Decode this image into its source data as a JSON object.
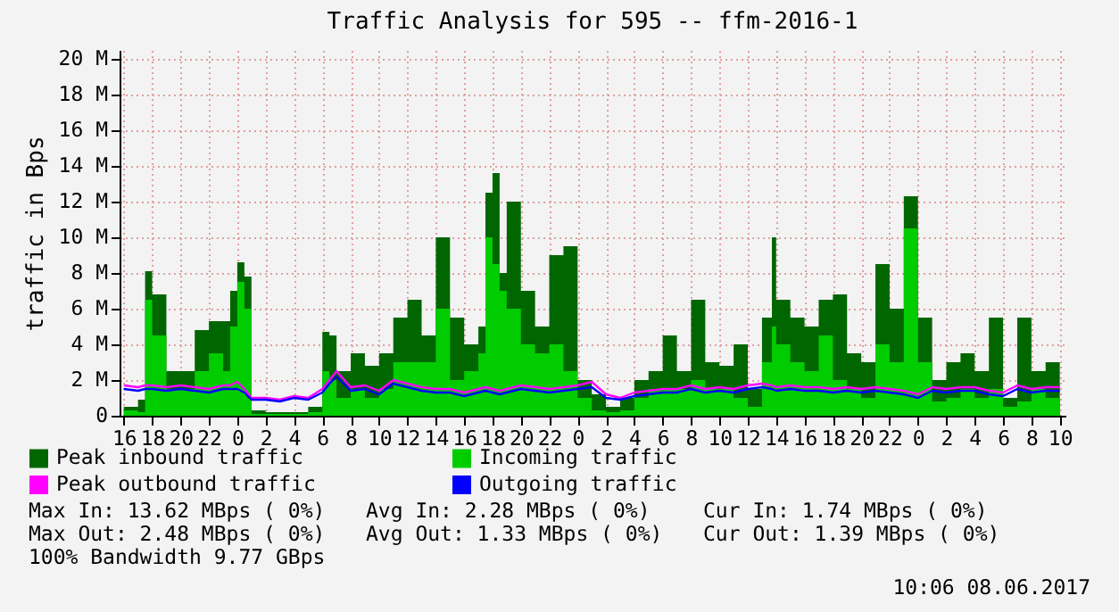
{
  "chart_data": {
    "type": "area",
    "title": "Traffic Analysis for 595 -- ffm-2016-1",
    "ylabel": "traffic in Bps",
    "x": [
      "2017-06-05T16:00",
      "2017-06-05T17:00",
      "2017-06-05T17:30",
      "2017-06-05T18:00",
      "2017-06-05T19:00",
      "2017-06-05T20:00",
      "2017-06-05T21:00",
      "2017-06-05T22:00",
      "2017-06-05T23:00",
      "2017-06-05T23:30",
      "2017-06-06T00:00",
      "2017-06-06T00:30",
      "2017-06-06T01:00",
      "2017-06-06T02:00",
      "2017-06-06T03:00",
      "2017-06-06T04:00",
      "2017-06-06T05:00",
      "2017-06-06T06:00",
      "2017-06-06T06:30",
      "2017-06-06T07:00",
      "2017-06-06T08:00",
      "2017-06-06T09:00",
      "2017-06-06T10:00",
      "2017-06-06T11:00",
      "2017-06-06T12:00",
      "2017-06-06T13:00",
      "2017-06-06T14:00",
      "2017-06-06T15:00",
      "2017-06-06T16:00",
      "2017-06-06T17:00",
      "2017-06-06T17:30",
      "2017-06-06T18:00",
      "2017-06-06T18:30",
      "2017-06-06T19:00",
      "2017-06-06T20:00",
      "2017-06-06T21:00",
      "2017-06-06T22:00",
      "2017-06-06T23:00",
      "2017-06-07T00:00",
      "2017-06-07T01:00",
      "2017-06-07T02:00",
      "2017-06-07T03:00",
      "2017-06-07T04:00",
      "2017-06-07T05:00",
      "2017-06-07T06:00",
      "2017-06-07T07:00",
      "2017-06-07T08:00",
      "2017-06-07T09:00",
      "2017-06-07T10:00",
      "2017-06-07T11:00",
      "2017-06-07T12:00",
      "2017-06-07T13:00",
      "2017-06-07T13:42",
      "2017-06-07T14:00",
      "2017-06-07T15:00",
      "2017-06-07T16:00",
      "2017-06-07T17:00",
      "2017-06-07T18:00",
      "2017-06-07T19:00",
      "2017-06-07T20:00",
      "2017-06-07T21:00",
      "2017-06-07T22:00",
      "2017-06-07T23:00",
      "2017-06-08T00:00",
      "2017-06-08T01:00",
      "2017-06-08T02:00",
      "2017-06-08T03:00",
      "2017-06-08T04:00",
      "2017-06-08T05:00",
      "2017-06-08T06:00",
      "2017-06-08T07:00",
      "2017-06-08T08:00",
      "2017-06-08T09:00",
      "2017-06-08T10:00"
    ],
    "series": [
      {
        "name": "Peak inbound traffic",
        "color": "#006600",
        "values": [
          0.5,
          0.9,
          8.1,
          6.8,
          2.5,
          2.5,
          4.8,
          5.3,
          5.3,
          7,
          8.6,
          7.8,
          0.3,
          0.2,
          0.2,
          0.2,
          0.5,
          4.7,
          4.5,
          2.5,
          3.5,
          2.8,
          3.5,
          5.5,
          6.5,
          4.5,
          10,
          5.5,
          4,
          5,
          12.5,
          13.6,
          8,
          12,
          7,
          5,
          9,
          9.5,
          2,
          1.2,
          0.5,
          1,
          2,
          2.5,
          4.5,
          2.5,
          6.5,
          3,
          2.8,
          4,
          1.5,
          5.5,
          10,
          6.5,
          5.5,
          5,
          6.5,
          6.8,
          3.5,
          3,
          8.5,
          6,
          12.3,
          5.5,
          2,
          3,
          3.5,
          2.5,
          5.5,
          1,
          5.5,
          2.5,
          3,
          4
        ]
      },
      {
        "name": "Incoming traffic",
        "color": "#00cc00",
        "values": [
          0.3,
          0.2,
          6.5,
          4.5,
          1.5,
          1.5,
          2.5,
          3.5,
          2.5,
          5,
          7.5,
          6,
          0.1,
          0.1,
          0.1,
          0.1,
          0.2,
          2.5,
          2,
          1,
          1.5,
          1,
          1.5,
          3,
          3,
          3,
          6,
          2,
          2.5,
          3.5,
          10,
          8.5,
          7,
          6,
          4,
          3.5,
          4,
          2.5,
          1,
          0.3,
          0.2,
          0.3,
          1,
          1.5,
          1.5,
          1.5,
          2,
          1.5,
          1.5,
          1,
          0.5,
          3,
          5,
          4,
          3,
          2.5,
          4.5,
          2,
          1.5,
          1,
          4,
          3,
          10.5,
          3,
          0.8,
          1,
          1.5,
          1,
          1.5,
          0.5,
          0.8,
          1.5,
          1,
          1.5
        ]
      },
      {
        "name": "Peak outbound traffic",
        "type": "line",
        "color": "#ff00ff",
        "values": [
          1.7,
          1.6,
          1.7,
          1.7,
          1.6,
          1.7,
          1.6,
          1.5,
          1.7,
          1.7,
          1.9,
          1.5,
          1.0,
          1.0,
          0.9,
          1.1,
          1.0,
          1.5,
          2.0,
          2.5,
          1.6,
          1.7,
          1.4,
          2.0,
          1.8,
          1.6,
          1.5,
          1.5,
          1.3,
          1.5,
          1.6,
          1.5,
          1.4,
          1.5,
          1.7,
          1.6,
          1.5,
          1.6,
          1.7,
          1.9,
          1.2,
          1.0,
          1.3,
          1.4,
          1.5,
          1.5,
          1.7,
          1.5,
          1.6,
          1.5,
          1.7,
          1.8,
          1.7,
          1.6,
          1.7,
          1.6,
          1.6,
          1.5,
          1.6,
          1.5,
          1.6,
          1.5,
          1.4,
          1.2,
          1.6,
          1.5,
          1.6,
          1.6,
          1.4,
          1.3,
          1.7,
          1.5,
          1.6,
          1.6
        ]
      },
      {
        "name": "Outgoing traffic",
        "type": "line",
        "color": "#0000ff",
        "values": [
          1.5,
          1.4,
          1.5,
          1.5,
          1.4,
          1.5,
          1.4,
          1.3,
          1.5,
          1.5,
          1.5,
          1.3,
          0.9,
          0.9,
          0.8,
          1.0,
          0.9,
          1.3,
          1.8,
          2.2,
          1.4,
          1.5,
          1.2,
          1.8,
          1.6,
          1.4,
          1.3,
          1.3,
          1.1,
          1.3,
          1.4,
          1.3,
          1.2,
          1.3,
          1.5,
          1.4,
          1.3,
          1.4,
          1.5,
          1.6,
          1.0,
          0.9,
          1.1,
          1.2,
          1.3,
          1.3,
          1.5,
          1.3,
          1.4,
          1.3,
          1.5,
          1.6,
          1.5,
          1.4,
          1.5,
          1.4,
          1.4,
          1.3,
          1.4,
          1.3,
          1.4,
          1.3,
          1.2,
          1.0,
          1.4,
          1.3,
          1.4,
          1.4,
          1.2,
          1.1,
          1.5,
          1.3,
          1.4,
          1.4
        ]
      }
    ],
    "xlim": [
      "2017-06-05T15:42",
      "2017-06-08T10:24"
    ],
    "xticks": [
      {
        "value": "2017-06-05T16:00",
        "label": "16"
      },
      {
        "value": "2017-06-05T18:00",
        "label": "18"
      },
      {
        "value": "2017-06-05T20:00",
        "label": "20"
      },
      {
        "value": "2017-06-05T22:00",
        "label": "22"
      },
      {
        "value": "2017-06-06T00:00",
        "label": "0"
      },
      {
        "value": "2017-06-06T02:00",
        "label": "2"
      },
      {
        "value": "2017-06-06T04:00",
        "label": "4"
      },
      {
        "value": "2017-06-06T06:00",
        "label": "6"
      },
      {
        "value": "2017-06-06T08:00",
        "label": "8"
      },
      {
        "value": "2017-06-06T10:00",
        "label": "10"
      },
      {
        "value": "2017-06-06T12:00",
        "label": "12"
      },
      {
        "value": "2017-06-06T14:00",
        "label": "14"
      },
      {
        "value": "2017-06-06T16:00",
        "label": "16"
      },
      {
        "value": "2017-06-06T18:00",
        "label": "18"
      },
      {
        "value": "2017-06-06T20:00",
        "label": "20"
      },
      {
        "value": "2017-06-06T22:00",
        "label": "22"
      },
      {
        "value": "2017-06-07T00:00",
        "label": "0"
      },
      {
        "value": "2017-06-07T02:00",
        "label": "2"
      },
      {
        "value": "2017-06-07T04:00",
        "label": "4"
      },
      {
        "value": "2017-06-07T06:00",
        "label": "6"
      },
      {
        "value": "2017-06-07T08:00",
        "label": "8"
      },
      {
        "value": "2017-06-07T10:00",
        "label": "10"
      },
      {
        "value": "2017-06-07T12:00",
        "label": "12"
      },
      {
        "value": "2017-06-07T14:00",
        "label": "14"
      },
      {
        "value": "2017-06-07T16:00",
        "label": "16"
      },
      {
        "value": "2017-06-07T18:00",
        "label": "18"
      },
      {
        "value": "2017-06-07T20:00",
        "label": "20"
      },
      {
        "value": "2017-06-07T22:00",
        "label": "22"
      },
      {
        "value": "2017-06-08T00:00",
        "label": "0"
      },
      {
        "value": "2017-06-08T02:00",
        "label": "2"
      },
      {
        "value": "2017-06-08T04:00",
        "label": "4"
      },
      {
        "value": "2017-06-08T06:00",
        "label": "6"
      },
      {
        "value": "2017-06-08T08:00",
        "label": "8"
      },
      {
        "value": "2017-06-08T10:00",
        "label": "10"
      }
    ],
    "ylim": [
      0,
      20.5
    ],
    "yticks": [
      {
        "value": 0,
        "label": "0"
      },
      {
        "value": 2,
        "label": "2 M"
      },
      {
        "value": 4,
        "label": "4 M"
      },
      {
        "value": 6,
        "label": "6 M"
      },
      {
        "value": 8,
        "label": "8 M"
      },
      {
        "value": 10,
        "label": "10 M"
      },
      {
        "value": 12,
        "label": "12 M"
      },
      {
        "value": 14,
        "label": "14 M"
      },
      {
        "value": 16,
        "label": "16 M"
      },
      {
        "value": 18,
        "label": "18 M"
      },
      {
        "value": 20,
        "label": "20 M"
      }
    ],
    "grid": true,
    "legend": "bottom",
    "annotations": [
      "Max In: 13.62 MBps ( 0%)",
      "Avg In: 2.28 MBps ( 0%)",
      "Cur In: 1.74 MBps ( 0%)",
      "Max Out: 2.48 MBps ( 0%)",
      "Avg Out: 1.33 MBps ( 0%)",
      "Cur Out: 1.39 MBps ( 0%)",
      "100% Bandwidth 9.77 GBps",
      "10:06 08.06.2017"
    ]
  }
}
